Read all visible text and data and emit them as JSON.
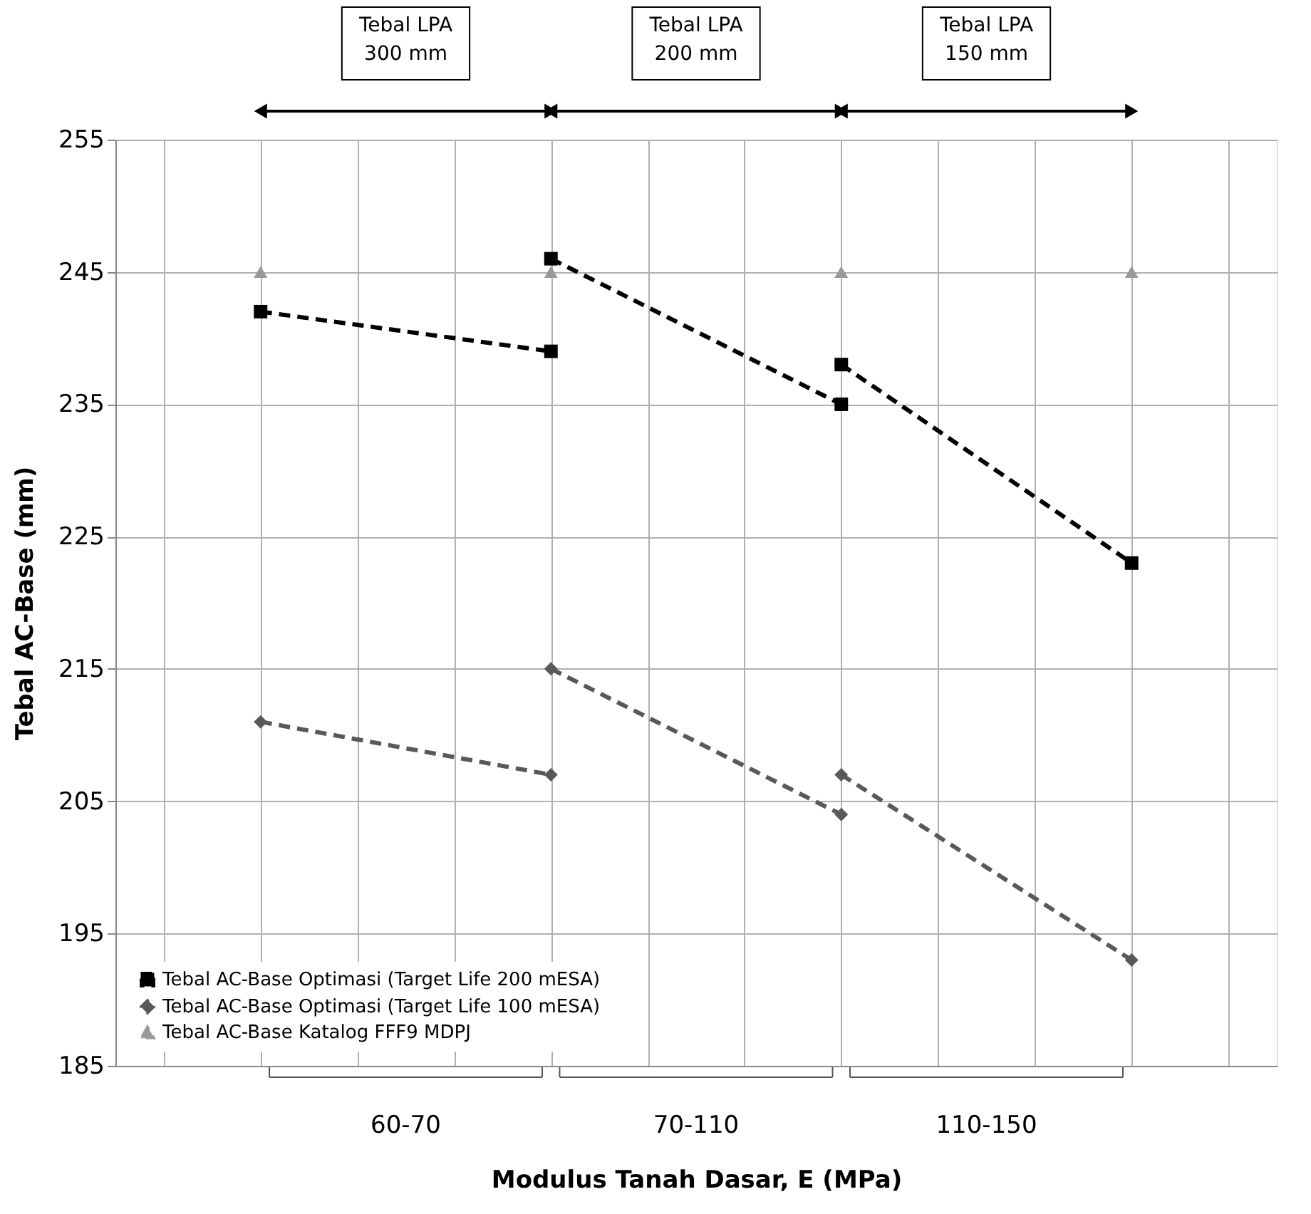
{
  "chart_data": {
    "type": "line",
    "xlabel": "Modulus Tanah Dasar, E (MPa)",
    "ylabel": "Tebal AC-Base (mm)",
    "categories": [
      null,
      null,
      null,
      null
    ],
    "ylim": [
      185,
      255
    ],
    "yticks": [
      185,
      195,
      205,
      215,
      225,
      235,
      245,
      255
    ],
    "grid": true,
    "legend": "bottom left",
    "line_style": "dashed",
    "series": [
      {
        "name": "Tebal AC-Base Optimasi (Target Life 200 mESA)",
        "color": "#000000",
        "marker": "square",
        "values": [
          242,
          239,
          null,
          null
        ]
      },
      {
        "color": "#000000",
        "marker": "square",
        "values": [
          null,
          246,
          235,
          null
        ]
      },
      {
        "color": "#000000",
        "marker": "square",
        "values": [
          null,
          null,
          238,
          223
        ]
      },
      {
        "name": "Tebal AC-Base Optimasi (Target Life 100 mESA)",
        "color": "#595959",
        "marker": "diamond",
        "values": [
          211,
          207,
          null,
          null
        ]
      },
      {
        "color": "#595959",
        "marker": "diamond",
        "values": [
          null,
          215,
          204,
          null
        ]
      },
      {
        "color": "#595959",
        "marker": "diamond",
        "values": [
          null,
          null,
          207,
          193
        ]
      },
      {
        "name": "Tebal AC-Base Katalog FFF9 MDPJ",
        "type": "scatter",
        "color": "#999999",
        "marker": "triangle",
        "values": [
          245,
          245,
          245,
          245
        ]
      }
    ],
    "annotations": [
      "Tebal LPA\n300 mm",
      "Tebal LPA\n200 mm",
      "Tebal LPA\n150 mm",
      "60-70",
      "70-110",
      "110-150"
    ]
  }
}
